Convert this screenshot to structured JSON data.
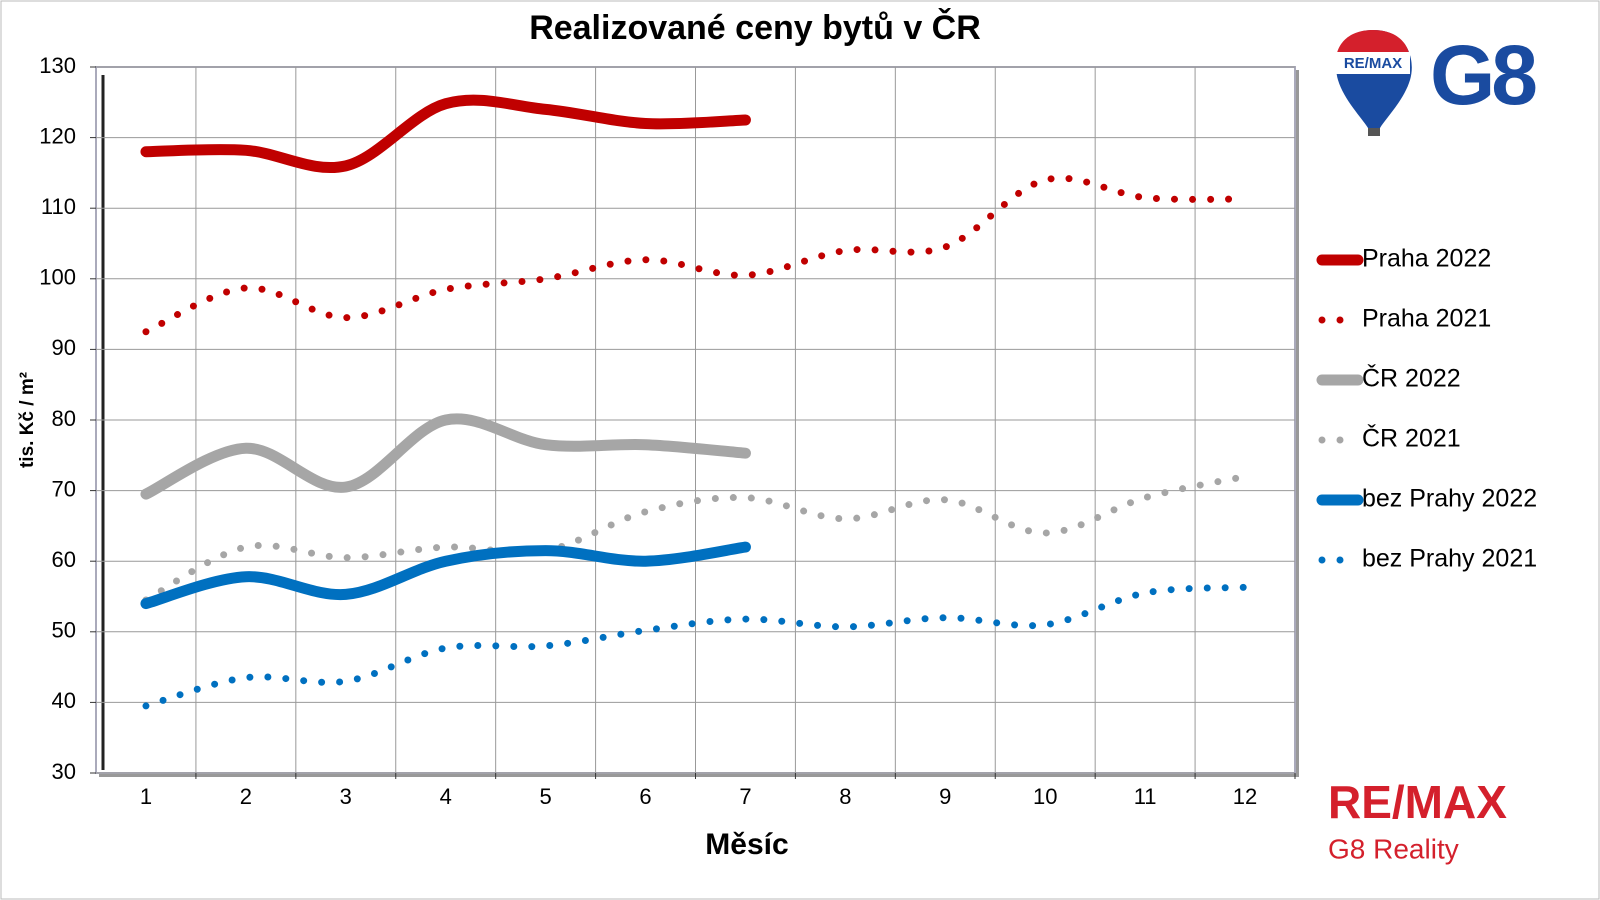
{
  "chart_data": {
    "type": "line",
    "title": "Realizované ceny bytů v ČR",
    "x_label": "Měsíc",
    "y_label": "tis. Kč / m²",
    "categories": [
      "1",
      "2",
      "3",
      "4",
      "5",
      "6",
      "7",
      "8",
      "9",
      "10",
      "11",
      "12"
    ],
    "ylim": [
      30,
      130
    ],
    "yticks": [
      30,
      40,
      50,
      60,
      70,
      80,
      90,
      100,
      110,
      120,
      130
    ],
    "grid": true,
    "legend": "right",
    "series": [
      {
        "name": "Praha 2022",
        "color": "#c00000",
        "style": "solid",
        "values": [
          118,
          118.2,
          116,
          124.8,
          124,
          122,
          122.5,
          null,
          null,
          null,
          null,
          null
        ]
      },
      {
        "name": "Praha 2021",
        "color": "#c00000",
        "style": "dotted",
        "values": [
          92.5,
          98.7,
          94.5,
          98.5,
          100,
          102.7,
          100.5,
          104,
          104.5,
          114,
          111.5,
          111.3
        ]
      },
      {
        "name": "ČR 2022",
        "color": "#a6a6a6",
        "style": "solid",
        "values": [
          69.5,
          76,
          70.5,
          80,
          76.5,
          76.5,
          75.3,
          null,
          null,
          null,
          null,
          null
        ]
      },
      {
        "name": "ČR 2021",
        "color": "#a6a6a6",
        "style": "dotted",
        "values": [
          54.5,
          62,
          60.5,
          62,
          61.5,
          67,
          69,
          66,
          68.7,
          64,
          69,
          72
        ]
      },
      {
        "name": "bez Prahy 2022",
        "color": "#0070c0",
        "style": "solid",
        "values": [
          54,
          57.8,
          55.3,
          60,
          61.5,
          60,
          62,
          null,
          null,
          null,
          null,
          null
        ]
      },
      {
        "name": "bez Prahy 2021",
        "color": "#0070c0",
        "style": "dotted",
        "values": [
          39.5,
          43.5,
          43,
          47.7,
          48,
          50.2,
          51.8,
          50.7,
          52,
          51,
          55.5,
          56.3
        ]
      }
    ]
  },
  "branding": {
    "balloon_text": "RE/MAX",
    "top_mark": "G8",
    "brand": "RE/MAX",
    "brand_sub": "G8 Reality"
  }
}
